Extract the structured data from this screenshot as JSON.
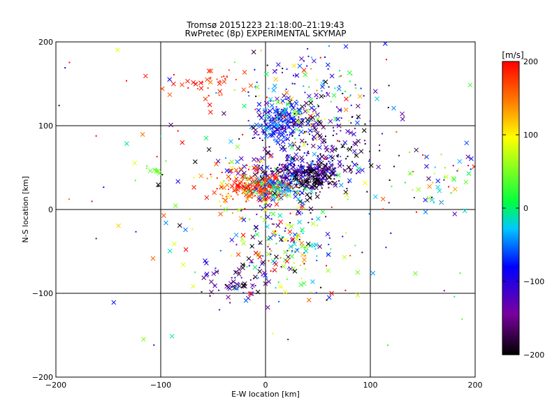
{
  "chart_data": {
    "type": "scatter",
    "title": "Tromsø 20151223 21:18:00–21:19:43",
    "subtitle": "RwPretec (8p) EXPERIMENTAL SKYMAP",
    "xlabel": "E-W location [km]",
    "ylabel": "N-S location [km]",
    "xlim": [
      -200,
      200
    ],
    "ylim": [
      -200,
      200
    ],
    "x_ticks": [
      -200,
      -100,
      0,
      100,
      200
    ],
    "y_ticks": [
      -200,
      -100,
      0,
      100,
      200
    ],
    "x_tick_labels": [
      "−200",
      "−100",
      "0",
      "100",
      "200"
    ],
    "y_tick_labels": [
      "−200",
      "−100",
      "0",
      "100",
      "200"
    ],
    "grid": true,
    "colorbar": {
      "label": "[m/s]",
      "range": [
        -200,
        200
      ],
      "ticks": [
        200,
        100,
        0,
        -100,
        -200
      ],
      "tick_labels": [
        "200",
        "100",
        "0",
        "−100",
        "−200"
      ],
      "colors": [
        "#000000",
        "#7a00a0",
        "#0000ff",
        "#00c8ff",
        "#00ff40",
        "#ffff00",
        "#ff8000",
        "#ff0000"
      ]
    },
    "marker_legend": {
      "cross": "large x markers",
      "dot": "small point markers"
    },
    "clusters": [
      {
        "cx": 15,
        "cy": 105,
        "sx": 12,
        "sy": 12,
        "vmean": -80,
        "vsd": 40,
        "n": 220
      },
      {
        "cx": 30,
        "cy": 45,
        "sx": 25,
        "sy": 10,
        "vmean": -120,
        "vsd": 45,
        "n": 280
      },
      {
        "cx": 45,
        "cy": 35,
        "sx": 12,
        "sy": 10,
        "vmean": -190,
        "vsd": 20,
        "n": 120
      },
      {
        "cx": -5,
        "cy": 25,
        "sx": 14,
        "sy": 8,
        "vmean": 185,
        "vsd": 15,
        "n": 170
      },
      {
        "cx": 10,
        "cy": 25,
        "sx": 12,
        "sy": 8,
        "vmean": -40,
        "vsd": 50,
        "n": 100
      },
      {
        "cx": -55,
        "cy": 150,
        "sx": 20,
        "sy": 12,
        "vmean": 185,
        "vsd": 15,
        "n": 45
      },
      {
        "cx": -35,
        "cy": -85,
        "sx": 20,
        "sy": 12,
        "vmean": -140,
        "vsd": 40,
        "n": 70
      },
      {
        "cx": 45,
        "cy": 130,
        "sx": 30,
        "sy": 35,
        "vmean": -40,
        "vsd": 110,
        "n": 180
      },
      {
        "cx": 20,
        "cy": -40,
        "sx": 25,
        "sy": 30,
        "vmean": 0,
        "vsd": 110,
        "n": 200
      },
      {
        "cx": 60,
        "cy": 80,
        "sx": 30,
        "sy": 25,
        "vmean": -180,
        "vsd": 40,
        "n": 120
      },
      {
        "cx": -25,
        "cy": 30,
        "sx": 20,
        "sy": 20,
        "vmean": 150,
        "vsd": 60,
        "n": 80
      },
      {
        "cx": 170,
        "cy": 35,
        "sx": 20,
        "sy": 20,
        "vmean": 0,
        "vsd": 120,
        "n": 50
      },
      {
        "cx": -105,
        "cy": 45,
        "sx": 4,
        "sy": 3,
        "vmean": 40,
        "vsd": 10,
        "n": 12
      },
      {
        "cx": 0,
        "cy": 20,
        "sx": 120,
        "sy": 100,
        "vmean": 0,
        "vsd": 150,
        "n": 160
      }
    ]
  }
}
